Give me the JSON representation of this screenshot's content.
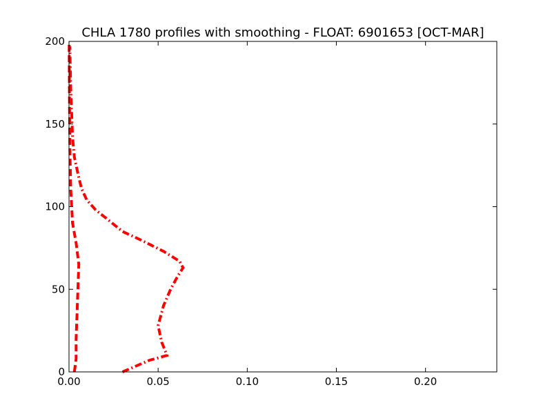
{
  "chart_data": {
    "type": "line",
    "title": "CHLA 1780 profiles with smoothing - FLOAT: 6901653 [OCT-MAR]",
    "xlabel": "",
    "ylabel": "",
    "xlim": [
      0,
      0.24
    ],
    "ylim": [
      0,
      200
    ],
    "x_ticks": [
      0.0,
      0.05,
      0.1,
      0.15,
      0.2
    ],
    "x_tick_labels": [
      "0.00",
      "0.05",
      "0.10",
      "0.15",
      "0.20"
    ],
    "y_ticks": [
      0,
      50,
      100,
      150,
      200
    ],
    "y_tick_labels": [
      "0",
      "50",
      "100",
      "150",
      "200"
    ],
    "grid": false,
    "series": [
      {
        "style": "dashed",
        "color": "#ff0000",
        "points": [
          {
            "x": 0.003,
            "y": 0
          },
          {
            "x": 0.004,
            "y": 8
          },
          {
            "x": 0.004,
            "y": 20
          },
          {
            "x": 0.0045,
            "y": 35
          },
          {
            "x": 0.005,
            "y": 50
          },
          {
            "x": 0.0055,
            "y": 65
          },
          {
            "x": 0.004,
            "y": 78
          },
          {
            "x": 0.002,
            "y": 90
          },
          {
            "x": 0.001,
            "y": 110
          },
          {
            "x": 0.0005,
            "y": 135
          },
          {
            "x": 0.0003,
            "y": 160
          },
          {
            "x": 0.0002,
            "y": 180
          },
          {
            "x": 0.0001,
            "y": 200
          }
        ]
      },
      {
        "style": "dashdot",
        "color": "#ff0000",
        "points": [
          {
            "x": 0.03,
            "y": 0
          },
          {
            "x": 0.045,
            "y": 7
          },
          {
            "x": 0.055,
            "y": 10
          },
          {
            "x": 0.052,
            "y": 18
          },
          {
            "x": 0.05,
            "y": 28
          },
          {
            "x": 0.053,
            "y": 40
          },
          {
            "x": 0.057,
            "y": 50
          },
          {
            "x": 0.061,
            "y": 58
          },
          {
            "x": 0.064,
            "y": 63
          },
          {
            "x": 0.062,
            "y": 67
          },
          {
            "x": 0.053,
            "y": 73
          },
          {
            "x": 0.04,
            "y": 80
          },
          {
            "x": 0.03,
            "y": 85
          },
          {
            "x": 0.022,
            "y": 92
          },
          {
            "x": 0.015,
            "y": 98
          },
          {
            "x": 0.01,
            "y": 104
          },
          {
            "x": 0.007,
            "y": 111
          },
          {
            "x": 0.005,
            "y": 120
          },
          {
            "x": 0.003,
            "y": 130
          },
          {
            "x": 0.002,
            "y": 142
          },
          {
            "x": 0.0015,
            "y": 156
          },
          {
            "x": 0.001,
            "y": 170
          },
          {
            "x": 0.0007,
            "y": 185
          },
          {
            "x": 0.0005,
            "y": 197
          }
        ]
      }
    ]
  }
}
